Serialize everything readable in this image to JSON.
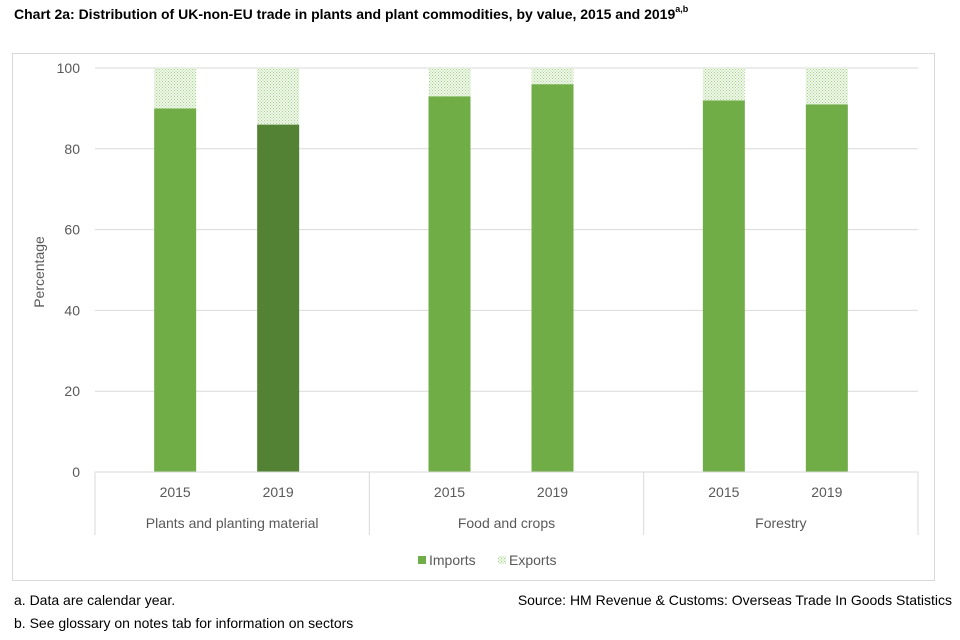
{
  "title": "Chart 2a: Distribution of UK-non-EU trade in plants and plant commodities, by value, 2015 and 2019",
  "title_sup": "a,b",
  "chart_data": {
    "type": "bar",
    "stacked": true,
    "title": "Chart 2a: Distribution of UK-non-EU trade in plants and plant commodities, by value, 2015 and 2019",
    "ylabel": "Percentage",
    "xlabel": "",
    "ylim": [
      0,
      100
    ],
    "yticks": [
      "0",
      "20",
      "40",
      "60",
      "80",
      "100"
    ],
    "grid": true,
    "legend": "bottom",
    "groups": [
      {
        "label": "Plants and planting material",
        "years": [
          "2015",
          "2019"
        ]
      },
      {
        "label": "Food and crops",
        "years": [
          "2015",
          "2019"
        ]
      },
      {
        "label": "Forestry",
        "years": [
          "2015",
          "2019"
        ]
      }
    ],
    "categories": [
      "2015",
      "2019",
      "2015",
      "2019",
      "2015",
      "2019"
    ],
    "series": [
      {
        "name": "Imports",
        "values": [
          90,
          86,
          93,
          96,
          92,
          91
        ],
        "color": "#70ad47"
      },
      {
        "name": "Exports",
        "values": [
          10,
          14,
          7,
          4,
          8,
          9
        ],
        "color": "#d7edcc"
      }
    ],
    "highlight_color": "#548235",
    "highlight_index": 1
  },
  "footnotes": {
    "a": "a. Data are calendar year.",
    "b": "b. See glossary on notes tab for information on sectors"
  },
  "source": "Source: HM Revenue & Customs: Overseas Trade In Goods Statistics"
}
